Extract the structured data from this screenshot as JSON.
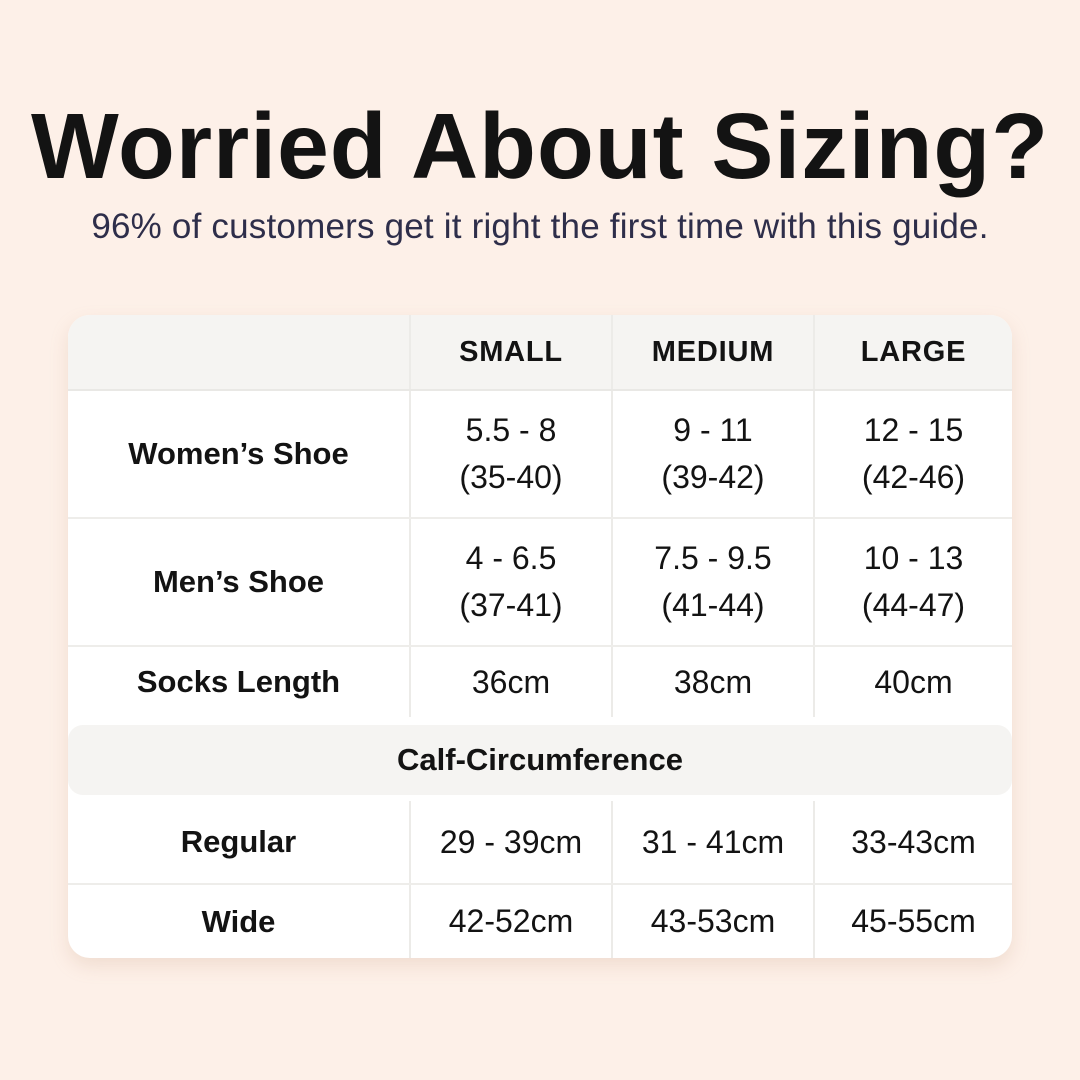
{
  "header": {
    "title": "Worried About Sizing?",
    "subtitle": "96% of customers get it right the first time with this guide."
  },
  "colors": {
    "page_background": "#fdf0e8",
    "card_background": "#ffffff",
    "band_background": "#f5f4f2",
    "divider": "#ecebe8",
    "title_text": "#131313",
    "subtitle_text": "#2e2e4a",
    "table_text": "#131313"
  },
  "chart_data": {
    "type": "table",
    "title": "Worried About Sizing?",
    "subtitle": "96% of customers get it right the first time with this guide.",
    "column_headers": [
      "SMALL",
      "MEDIUM",
      "LARGE"
    ],
    "rows": [
      {
        "label": "Women’s Shoe",
        "cells": [
          [
            "5.5 - 8",
            "(35-40)"
          ],
          [
            "9 - 11",
            "(39-42)"
          ],
          [
            "12 - 15",
            "(42-46)"
          ]
        ]
      },
      {
        "label": "Men’s Shoe",
        "cells": [
          [
            "4 - 6.5",
            "(37-41)"
          ],
          [
            "7.5 - 9.5",
            "(41-44)"
          ],
          [
            "10 - 13",
            "(44-47)"
          ]
        ]
      },
      {
        "label": "Socks Length",
        "cells": [
          [
            "36cm"
          ],
          [
            "38cm"
          ],
          [
            "40cm"
          ]
        ]
      },
      {
        "label": "Regular",
        "cells": [
          [
            "29 - 39cm"
          ],
          [
            "31 - 41cm"
          ],
          [
            "33-43cm"
          ]
        ]
      },
      {
        "label": "Wide",
        "cells": [
          [
            "42-52cm"
          ],
          [
            "43-53cm"
          ],
          [
            "45-55cm"
          ]
        ]
      }
    ],
    "section_header": {
      "label": "Calf-Circumference",
      "before_row_index": 3
    },
    "layout_hints": {
      "grid": "rounded card, light gray header band and section band, thin gray dividers"
    }
  }
}
